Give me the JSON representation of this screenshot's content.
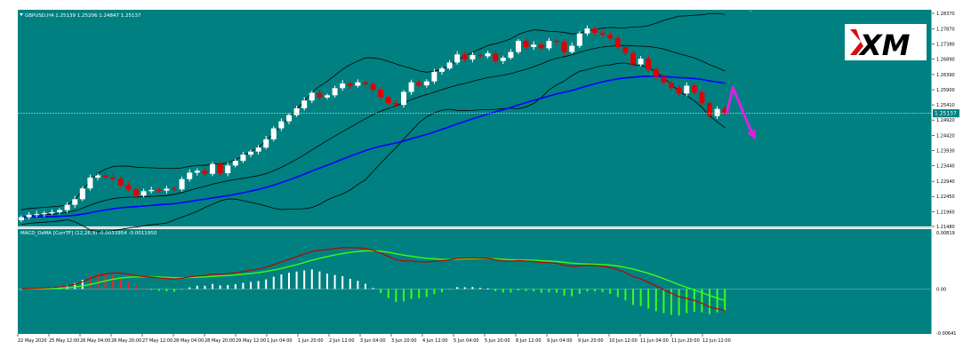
{
  "main": {
    "header": "GBPUSD,H4  1.25139 1.25206 1.24847 1.25137",
    "current_price_label": "1.25137"
  },
  "macd": {
    "header": "MACD_OsMA [CurrTF] (12,26,9) -0.0033954 -0.0011950"
  },
  "logo": {
    "text": "XM"
  },
  "colors": {
    "background": "#008080",
    "bull_candle": "#ffffff",
    "bear_candle": "#e00000",
    "bollinger": "#000000",
    "ma": "#0000ff",
    "macd_line": "#c00000",
    "signal_line": "#39ff14",
    "hist_pos": "#ffffff",
    "hist_neg": "#39ff14",
    "hist_up_bar": "#ff2020",
    "arrow": "#e020e0"
  },
  "chart_data": [
    {
      "type": "candlestick",
      "symbol": "GBPUSD",
      "timeframe": "H4",
      "ylim": [
        1.2148,
        1.2837
      ],
      "y_ticks": [
        "1.28370",
        "1.27870",
        "1.27380",
        "1.26890",
        "1.26390",
        "1.25900",
        "1.25410",
        "1.24920",
        "1.24420",
        "1.23930",
        "1.23440",
        "1.22940",
        "1.22450",
        "1.21960",
        "1.21480"
      ],
      "x_ticks": [
        "22 May 2020",
        "25 May 12:00",
        "26 May 04:00",
        "26 May 20:00",
        "27 May 12:00",
        "28 May 04:00",
        "28 May 20:00",
        "29 May 12:00",
        "1 Jun 04:00",
        "1 Jun 20:00",
        "2 Jun 12:00",
        "3 Jun 04:00",
        "3 Jun 20:00",
        "4 Jun 12:00",
        "5 Jun 04:00",
        "5 Jun 20:00",
        "8 Jun 12:00",
        "9 Jun 04:00",
        "9 Jun 20:00",
        "10 Jun 12:00",
        "11 Jun 04:00",
        "11 Jun 20:00",
        "12 Jun 12:00"
      ],
      "closes": [
        1.2178,
        1.2186,
        1.2188,
        1.2191,
        1.2194,
        1.2201,
        1.2218,
        1.2236,
        1.2271,
        1.2306,
        1.2313,
        1.2307,
        1.2302,
        1.2282,
        1.2268,
        1.2248,
        1.2262,
        1.2266,
        1.2264,
        1.227,
        1.2268,
        1.2301,
        1.2322,
        1.2328,
        1.2318,
        1.235,
        1.232,
        1.2345,
        1.236,
        1.238,
        1.239,
        1.2403,
        1.243,
        1.2465,
        1.2488,
        1.2508,
        1.253,
        1.2555,
        1.258,
        1.2565,
        1.2572,
        1.2595,
        1.261,
        1.2603,
        1.2614,
        1.2608,
        1.259,
        1.2566,
        1.2547,
        1.2541,
        1.2583,
        1.2614,
        1.2604,
        1.2617,
        1.2648,
        1.2659,
        1.2678,
        1.2704,
        1.2688,
        1.2702,
        1.2698,
        1.2708,
        1.2683,
        1.2693,
        1.2712,
        1.2748,
        1.2728,
        1.2736,
        1.2724,
        1.2748,
        1.2744,
        1.2712,
        1.2732,
        1.2772,
        1.2788,
        1.2774,
        1.2768,
        1.2756,
        1.2728,
        1.2709,
        1.2672,
        1.269,
        1.2657,
        1.2632,
        1.2613,
        1.2596,
        1.2578,
        1.2603,
        1.2581,
        1.2547,
        1.2505,
        1.2528,
        1.25137
      ],
      "bollinger_period": 20,
      "ma_period": 50,
      "current_price": 1.25137,
      "annotation": "magenta arrow: up then down from last candle"
    },
    {
      "type": "macd",
      "params": [
        12,
        26,
        9
      ],
      "macd_value": -0.0033954,
      "signal_value": -0.001195,
      "ylim": [
        -0.00641,
        0.00819
      ],
      "y_ticks": [
        "0.00819",
        "0.00",
        "-0.00641"
      ]
    }
  ]
}
